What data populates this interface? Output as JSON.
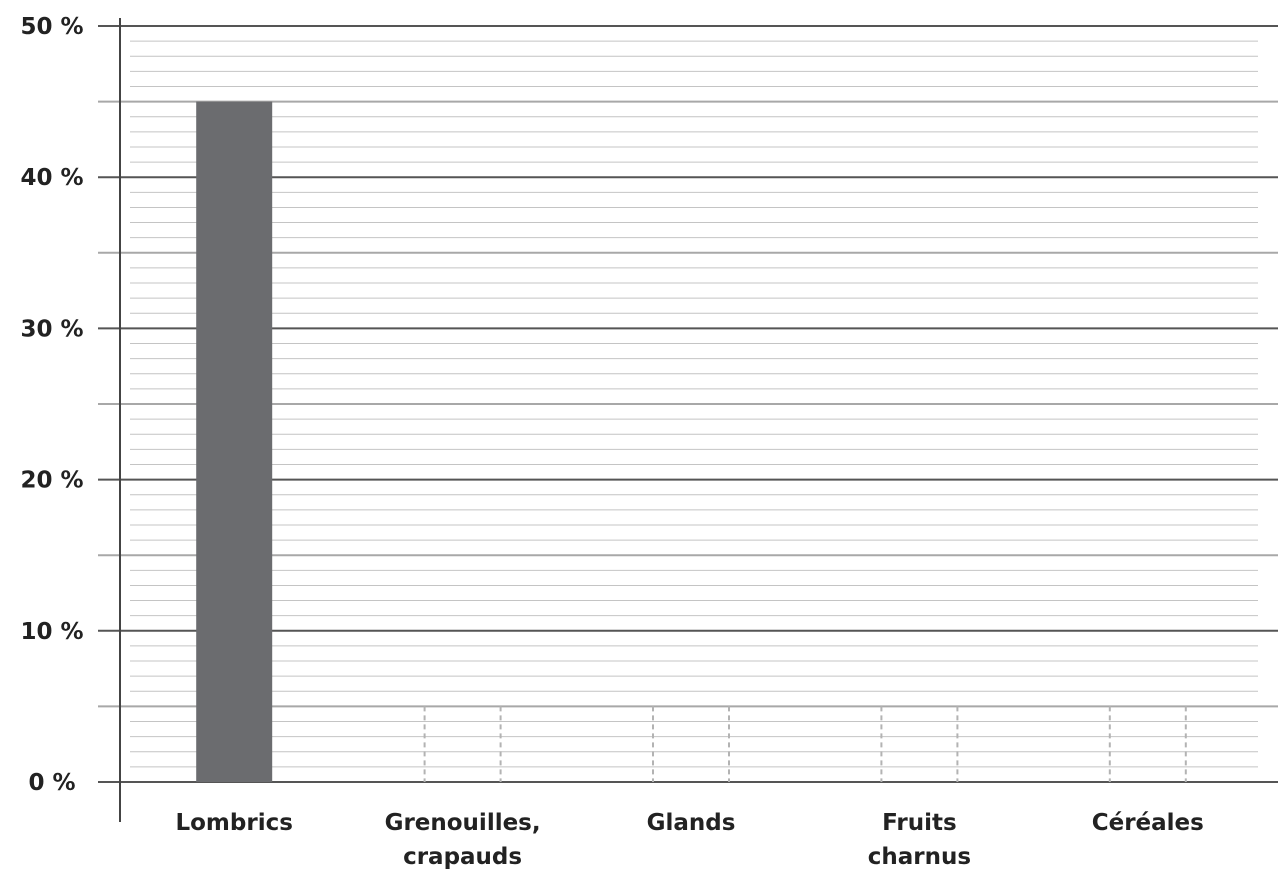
{
  "chart_data": {
    "type": "bar",
    "categories": [
      [
        "Lombrics"
      ],
      [
        "Grenouilles,",
        "crapauds"
      ],
      [
        "Glands"
      ],
      [
        "Fruits",
        "charnus"
      ],
      [
        "Céréales"
      ]
    ],
    "values": [
      45,
      0,
      0,
      0,
      0
    ],
    "ylim": [
      0,
      50
    ],
    "yticks": [
      0,
      10,
      20,
      30,
      40,
      50
    ],
    "ytick_labels": [
      "0 %",
      "10 %",
      "20 %",
      "30 %",
      "40 %",
      "50 %"
    ],
    "title": "",
    "xlabel": "",
    "ylabel": "",
    "grid": true,
    "bar_color": "#6b6c6f",
    "empty_bar_outline_color": "#b3b3b3"
  }
}
